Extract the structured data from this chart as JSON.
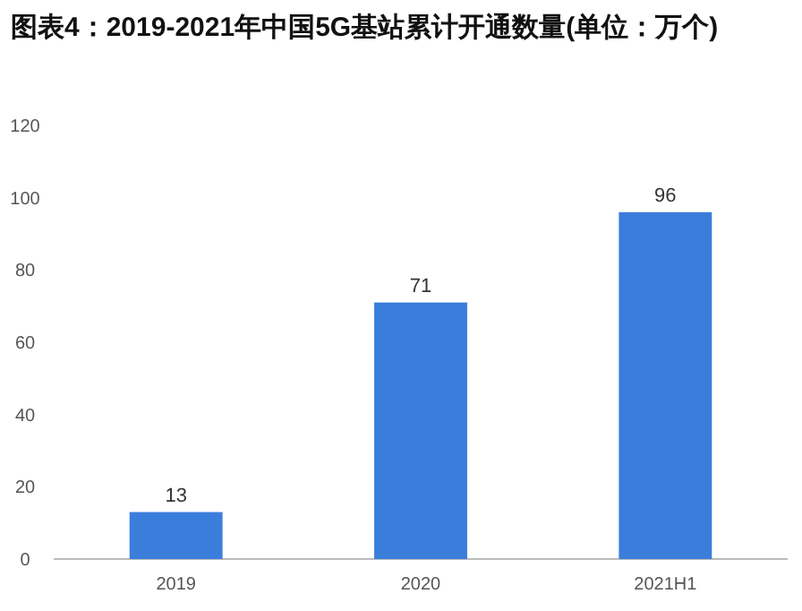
{
  "chart_data": {
    "type": "bar",
    "title": "图表4：2019-2021年中国5G基站累计开通数量(单位：万个)",
    "categories": [
      "2019",
      "2020",
      "2021H1"
    ],
    "values": [
      13,
      71,
      96
    ],
    "color": "#3b7ddb",
    "ylim": [
      0,
      120
    ],
    "yticks": [
      0,
      20,
      40,
      60,
      80,
      100,
      120
    ],
    "grid": false,
    "data_labels": true
  }
}
